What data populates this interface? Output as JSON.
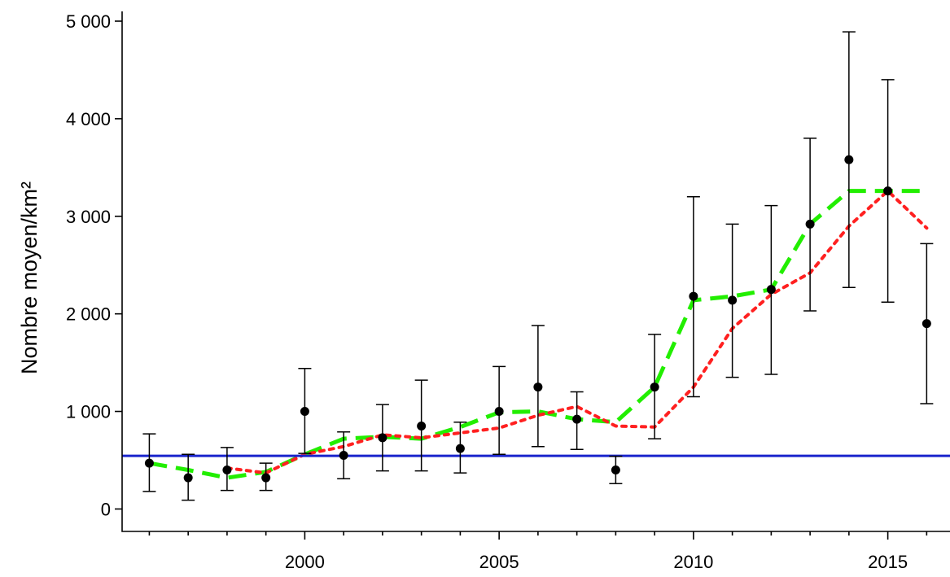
{
  "chart_data": {
    "type": "scatter",
    "title": "",
    "xlabel": "",
    "ylabel": "Nombre moyen/km²",
    "xlim": [
      1995.3,
      2016.6
    ],
    "ylim": [
      -230,
      5100
    ],
    "x_ticks": [
      2000,
      2005,
      2010,
      2015
    ],
    "x_tick_labels": [
      "2000",
      "2005",
      "2010",
      "2015"
    ],
    "x_minor_ticks": [
      1996,
      1997,
      1998,
      1999,
      2001,
      2002,
      2003,
      2004,
      2006,
      2007,
      2008,
      2009,
      2011,
      2012,
      2013,
      2014,
      2016
    ],
    "y_ticks": [
      0,
      1000,
      2000,
      3000,
      4000,
      5000
    ],
    "y_tick_labels": [
      "0",
      "1 000",
      "2 000",
      "3 000",
      "4 000",
      "5 000"
    ],
    "grid": false,
    "legend": "none",
    "points": {
      "x": [
        1996,
        1997,
        1998,
        1999,
        2000,
        2001,
        2002,
        2003,
        2004,
        2005,
        2006,
        2007,
        2008,
        2009,
        2010,
        2011,
        2012,
        2013,
        2014,
        2015,
        2016
      ],
      "y": [
        470,
        320,
        400,
        320,
        1000,
        550,
        730,
        850,
        620,
        1000,
        1250,
        920,
        400,
        1250,
        2180,
        2140,
        2250,
        2920,
        3580,
        3260,
        1900
      ],
      "err_low": [
        180,
        90,
        190,
        190,
        570,
        310,
        390,
        390,
        370,
        560,
        640,
        610,
        260,
        720,
        1150,
        1350,
        1380,
        2030,
        2270,
        2120,
        1080
      ],
      "err_high": [
        770,
        560,
        630,
        470,
        1440,
        790,
        1070,
        1320,
        890,
        1460,
        1880,
        1200,
        540,
        1790,
        3200,
        2920,
        3110,
        3800,
        4890,
        4400,
        2720
      ]
    },
    "series": [
      {
        "style": "dashed",
        "color": "#22ee00",
        "x": [
          1996,
          1997,
          1998,
          1999,
          2000,
          2001,
          2002,
          2003,
          2004,
          2005,
          2006,
          2007,
          2008,
          2009,
          2010,
          2011,
          2012,
          2013,
          2014,
          2015,
          2016
        ],
        "y": [
          470,
          400,
          320,
          380,
          560,
          720,
          740,
          720,
          840,
          990,
          1000,
          920,
          890,
          1250,
          2140,
          2180,
          2250,
          2920,
          3260,
          3260,
          3260
        ]
      },
      {
        "style": "dotted",
        "color": "#ff2020",
        "x": [
          1998,
          1999,
          2000,
          2001,
          2002,
          2003,
          2004,
          2005,
          2006,
          2007,
          2008,
          2009,
          2010,
          2011,
          2012,
          2013,
          2014,
          2015,
          2016
        ],
        "y": [
          420,
          370,
          560,
          640,
          760,
          730,
          780,
          830,
          960,
          1050,
          850,
          840,
          1250,
          1850,
          2200,
          2420,
          2900,
          3260,
          2880
        ]
      }
    ],
    "reference_line": {
      "y": 545,
      "color": "#1a24cc"
    }
  }
}
